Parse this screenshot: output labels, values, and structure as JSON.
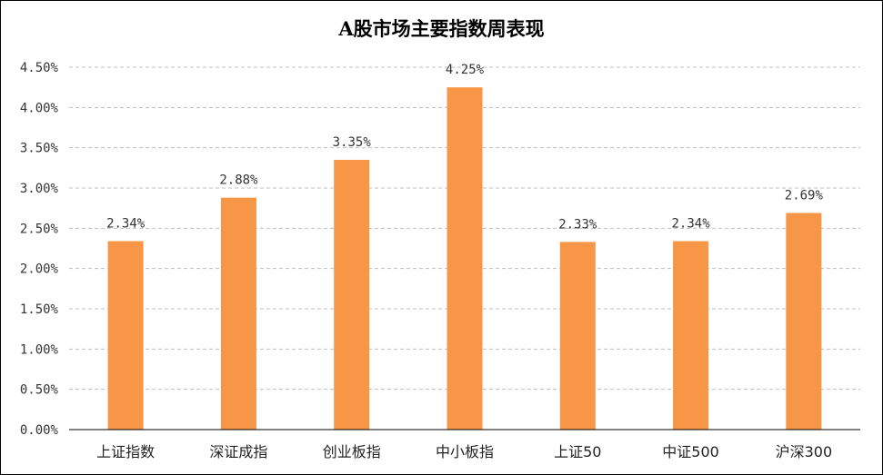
{
  "chart_data": {
    "type": "bar",
    "title": "A股市场主要指数周表现",
    "categories": [
      "上证指数",
      "深证成指",
      "创业板指",
      "中小板指",
      "上证50",
      "中证500",
      "沪深300"
    ],
    "values": [
      2.34,
      2.88,
      3.35,
      4.25,
      2.33,
      2.34,
      2.69
    ],
    "value_labels": [
      "2.34%",
      "2.88%",
      "3.35%",
      "4.25%",
      "2.33%",
      "2.34%",
      "2.69%"
    ],
    "yticks": [
      "0.00%",
      "0.50%",
      "1.00%",
      "1.50%",
      "2.00%",
      "2.50%",
      "3.00%",
      "3.50%",
      "4.00%",
      "4.50%"
    ],
    "ylim": [
      0,
      4.5
    ],
    "ystep": 0.5,
    "grid": true,
    "legend": "none",
    "bar_color": "#F79646"
  }
}
